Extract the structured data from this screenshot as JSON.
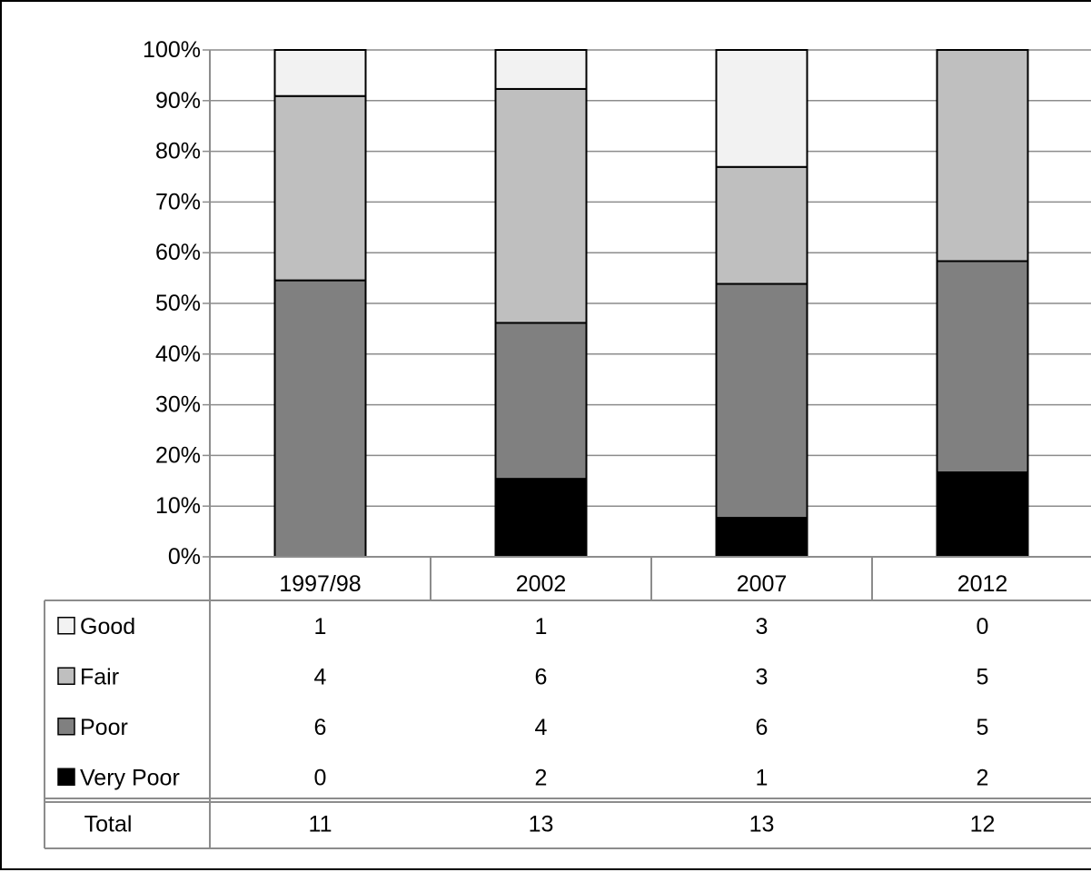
{
  "chart_data": {
    "type": "bar",
    "stacked": true,
    "normalized_percent": true,
    "categories": [
      "1997/98",
      "2002",
      "2007",
      "2012"
    ],
    "series": [
      {
        "name": "Very Poor",
        "values": [
          0,
          2,
          1,
          2
        ],
        "color": "#000000"
      },
      {
        "name": "Poor",
        "values": [
          6,
          4,
          6,
          5
        ],
        "color": "#808080"
      },
      {
        "name": "Fair",
        "values": [
          4,
          6,
          3,
          5
        ],
        "color": "#bfbfbf"
      },
      {
        "name": "Good",
        "values": [
          1,
          1,
          3,
          0
        ],
        "color": "#f2f2f2"
      }
    ],
    "y_ticks": [
      "0%",
      "10%",
      "20%",
      "30%",
      "40%",
      "50%",
      "60%",
      "70%",
      "80%",
      "90%",
      "100%"
    ],
    "ylim": [
      0,
      100
    ],
    "grid": true,
    "data_table": {
      "rows_order": [
        "Good",
        "Fair",
        "Poor",
        "Very Poor"
      ],
      "total_label": "Total",
      "totals": [
        11,
        13,
        13,
        12
      ]
    }
  }
}
